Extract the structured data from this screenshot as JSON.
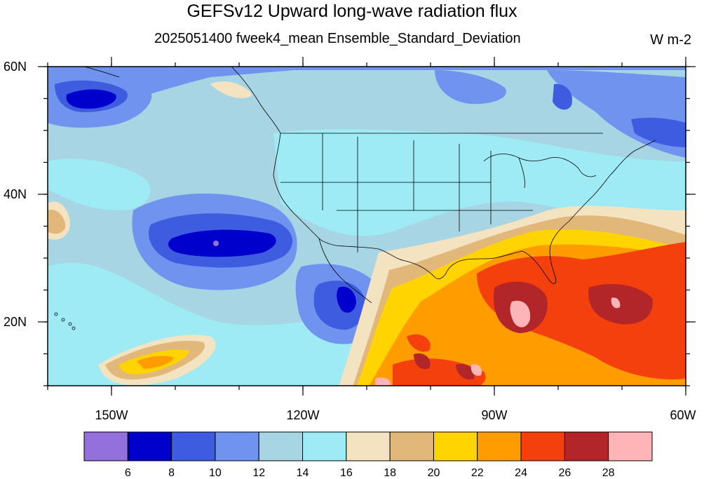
{
  "title": "GEFSv12 Upward long-wave radiation flux",
  "subtitle": "2025051400 fweek4_mean Ensemble_Standard_Deviation",
  "units": "W m-2",
  "map": {
    "lon_range": [
      -160,
      -60
    ],
    "lat_range": [
      10,
      60
    ],
    "x_ticks": [
      {
        "value": -150,
        "label": "150W"
      },
      {
        "value": -120,
        "label": "120W"
      },
      {
        "value": -90,
        "label": "90W"
      },
      {
        "value": -60,
        "label": "60W"
      }
    ],
    "y_ticks": [
      {
        "value": 60,
        "label": "60N"
      },
      {
        "value": 40,
        "label": "40N"
      },
      {
        "value": 20,
        "label": "20N"
      }
    ]
  },
  "colorbar": {
    "colors": [
      "#9370db",
      "#0000cd",
      "#3d5ce0",
      "#6f93ee",
      "#a7d5e4",
      "#9eeaf5",
      "#f4e3c0",
      "#e2b77a",
      "#ffd400",
      "#ff9c00",
      "#f4400c",
      "#b2262a",
      "#ffb5b8"
    ],
    "labels": [
      "6",
      "8",
      "10",
      "12",
      "14",
      "16",
      "18",
      "20",
      "22",
      "24",
      "26",
      "28"
    ]
  }
}
